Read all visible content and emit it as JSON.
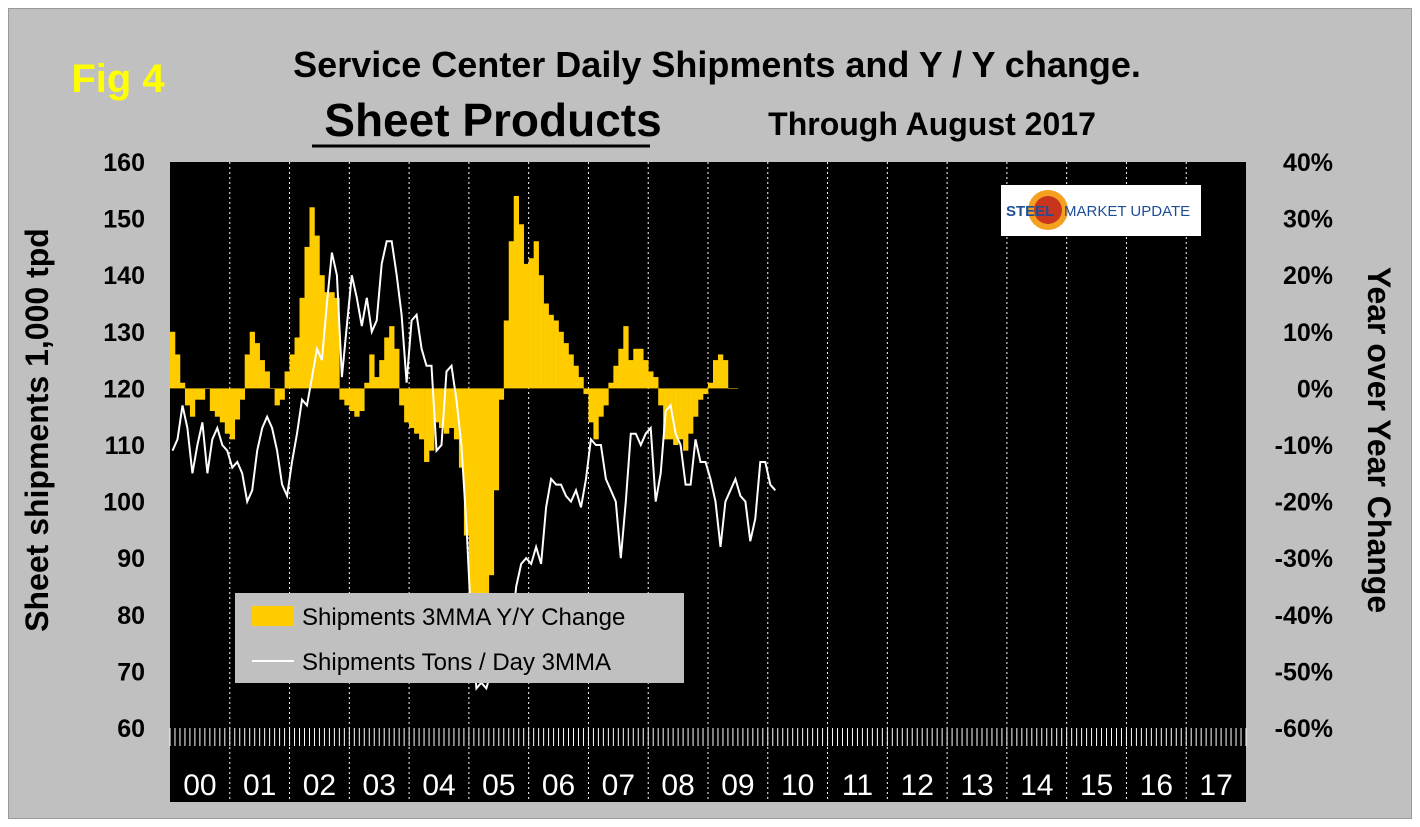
{
  "chart_data": {
    "type": "bar+line",
    "fig_label": "Fig 4",
    "title": "Service Center Daily Shipments and Y / Y change.",
    "subtitle": "Sheet Products",
    "subtitle2": "Through August 2017",
    "ylabel_left": "Sheet shipments 1,000 tpd",
    "ylabel_right": "Year over Year Change",
    "ylim_left": [
      60,
      160
    ],
    "ylim_right": [
      -60,
      40
    ],
    "yticks_left": [
      "60",
      "70",
      "80",
      "90",
      "100",
      "110",
      "120",
      "130",
      "140",
      "150",
      "160"
    ],
    "yticks_right": [
      "-60%",
      "-50%",
      "-40%",
      "-30%",
      "-20%",
      "-10%",
      "0%",
      "10%",
      "20%",
      "30%",
      "40%"
    ],
    "categories": [
      "00",
      "01",
      "02",
      "03",
      "04",
      "05",
      "06",
      "07",
      "08",
      "09",
      "10",
      "11",
      "12",
      "13",
      "14",
      "15",
      "16",
      "17"
    ],
    "logo_text": {
      "steel": "STEEL",
      "market_update": "MARKET UPDATE"
    },
    "legend": {
      "position": "bottom-left"
    },
    "colors": {
      "bars": "#ffcc00",
      "line": "#ffffff",
      "plot_bg": "#000000",
      "frame": "#c0c0c0",
      "fig_label": "#ffff00"
    },
    "series": [
      {
        "name": "Shipments 3MMA Y/Y Change",
        "type": "bar",
        "axis": "right",
        "anchors": [
          [
            0,
            10
          ],
          [
            1,
            6
          ],
          [
            2,
            1
          ],
          [
            3,
            -3
          ],
          [
            4,
            -5
          ],
          [
            5,
            -2
          ],
          [
            6,
            -2
          ],
          [
            7,
            0
          ],
          [
            8,
            -4
          ],
          [
            9,
            -5
          ],
          [
            10,
            -6
          ],
          [
            11,
            -8
          ],
          [
            12,
            -9
          ],
          [
            14,
            -2
          ],
          [
            15,
            6
          ],
          [
            16,
            10
          ],
          [
            17,
            8
          ],
          [
            18,
            5
          ],
          [
            19,
            3
          ],
          [
            20,
            0
          ],
          [
            21,
            -3
          ],
          [
            22,
            -2
          ],
          [
            23,
            3
          ],
          [
            24,
            6
          ],
          [
            25,
            9
          ],
          [
            26,
            16
          ],
          [
            27,
            25
          ],
          [
            28,
            32
          ],
          [
            29,
            27
          ],
          [
            30,
            20
          ],
          [
            31,
            17
          ],
          [
            32,
            17
          ],
          [
            33,
            16
          ],
          [
            34,
            -2
          ],
          [
            35,
            -3
          ],
          [
            36,
            -4
          ],
          [
            37,
            -5
          ],
          [
            38,
            -4
          ],
          [
            39,
            1
          ],
          [
            40,
            6
          ],
          [
            41,
            2
          ],
          [
            42,
            5
          ],
          [
            43,
            9
          ],
          [
            44,
            11
          ],
          [
            45,
            7
          ],
          [
            46,
            -3
          ],
          [
            47,
            -6
          ],
          [
            48,
            -7
          ],
          [
            49,
            -8
          ],
          [
            50,
            -9
          ],
          [
            51,
            -13
          ],
          [
            52,
            -11
          ],
          [
            53,
            -6
          ],
          [
            54,
            -7
          ],
          [
            55,
            -8
          ],
          [
            56,
            -7
          ],
          [
            57,
            -9
          ],
          [
            58,
            -14
          ],
          [
            59,
            -26
          ],
          [
            60,
            -37
          ],
          [
            61,
            -43
          ],
          [
            62,
            -46
          ],
          [
            63,
            -43
          ],
          [
            64,
            -33
          ],
          [
            65,
            -18
          ],
          [
            66,
            -2
          ],
          [
            67,
            12
          ],
          [
            68,
            26
          ],
          [
            69,
            34
          ],
          [
            70,
            29
          ],
          [
            71,
            22
          ],
          [
            72,
            23
          ],
          [
            73,
            26
          ],
          [
            74,
            20
          ],
          [
            75,
            15
          ],
          [
            76,
            13
          ],
          [
            77,
            12
          ],
          [
            78,
            10
          ],
          [
            79,
            8
          ],
          [
            80,
            6
          ],
          [
            81,
            4
          ],
          [
            82,
            2
          ],
          [
            83,
            -1
          ],
          [
            84,
            -6
          ],
          [
            85,
            -9
          ],
          [
            86,
            -5
          ],
          [
            87,
            -3
          ],
          [
            88,
            1
          ],
          [
            89,
            4
          ],
          [
            90,
            7
          ],
          [
            91,
            11
          ],
          [
            92,
            5
          ],
          [
            93,
            7
          ],
          [
            94,
            7
          ],
          [
            95,
            5
          ],
          [
            96,
            3
          ],
          [
            97,
            2
          ],
          [
            98,
            -3
          ],
          [
            99,
            -9
          ],
          [
            100,
            -9
          ],
          [
            101,
            -10
          ],
          [
            102,
            -9
          ],
          [
            103,
            -11
          ],
          [
            104,
            -8
          ],
          [
            105,
            -5
          ],
          [
            106,
            -2
          ],
          [
            107,
            -1
          ],
          [
            108,
            1
          ],
          [
            109,
            5
          ],
          [
            110,
            6
          ],
          [
            111,
            5
          ],
          [
            112,
            0
          ],
          [
            113,
            0
          ]
        ]
      },
      {
        "name": "Shipments Tons / Day 3MMA",
        "type": "line",
        "axis": "left",
        "anchors": [
          [
            0,
            109
          ],
          [
            1,
            111
          ],
          [
            2,
            117
          ],
          [
            3,
            113
          ],
          [
            4,
            105
          ],
          [
            5,
            110
          ],
          [
            6,
            114
          ],
          [
            7,
            105
          ],
          [
            8,
            111
          ],
          [
            9,
            113
          ],
          [
            10,
            110
          ],
          [
            11,
            109
          ],
          [
            12,
            106
          ],
          [
            13,
            107
          ],
          [
            14,
            105
          ],
          [
            15,
            100
          ],
          [
            16,
            102
          ],
          [
            17,
            109
          ],
          [
            18,
            113
          ],
          [
            19,
            115
          ],
          [
            20,
            113
          ],
          [
            21,
            109
          ],
          [
            22,
            103
          ],
          [
            23,
            101
          ],
          [
            24,
            107
          ],
          [
            25,
            112
          ],
          [
            26,
            118
          ],
          [
            27,
            117
          ],
          [
            28,
            122
          ],
          [
            29,
            127
          ],
          [
            30,
            125
          ],
          [
            31,
            135
          ],
          [
            32,
            144
          ],
          [
            33,
            140
          ],
          [
            34,
            122
          ],
          [
            35,
            131
          ],
          [
            36,
            140
          ],
          [
            37,
            136
          ],
          [
            38,
            131
          ],
          [
            39,
            136
          ],
          [
            40,
            130
          ],
          [
            41,
            132
          ],
          [
            42,
            142
          ],
          [
            43,
            146
          ],
          [
            44,
            146
          ],
          [
            45,
            140
          ],
          [
            46,
            133
          ],
          [
            47,
            121
          ],
          [
            48,
            132
          ],
          [
            49,
            133
          ],
          [
            50,
            127
          ],
          [
            51,
            124
          ],
          [
            52,
            124
          ],
          [
            53,
            109
          ],
          [
            54,
            110
          ],
          [
            55,
            123
          ],
          [
            56,
            124
          ],
          [
            57,
            118
          ],
          [
            58,
            110
          ],
          [
            59,
            96
          ],
          [
            60,
            78
          ],
          [
            61,
            67
          ],
          [
            62,
            68
          ],
          [
            63,
            67
          ],
          [
            64,
            70
          ],
          [
            65,
            74
          ],
          [
            66,
            76
          ],
          [
            67,
            72
          ],
          [
            68,
            76
          ],
          [
            69,
            85
          ],
          [
            70,
            89
          ],
          [
            71,
            90
          ],
          [
            72,
            89
          ],
          [
            73,
            92
          ],
          [
            74,
            89
          ],
          [
            75,
            99
          ],
          [
            76,
            104
          ],
          [
            77,
            103
          ],
          [
            78,
            103
          ],
          [
            79,
            101
          ],
          [
            80,
            100
          ],
          [
            81,
            102
          ],
          [
            82,
            99
          ],
          [
            83,
            104
          ],
          [
            84,
            111
          ],
          [
            85,
            110
          ],
          [
            86,
            110
          ],
          [
            87,
            104
          ],
          [
            88,
            102
          ],
          [
            89,
            100
          ],
          [
            90,
            90
          ],
          [
            91,
            100
          ],
          [
            92,
            112
          ],
          [
            93,
            112
          ],
          [
            94,
            110
          ],
          [
            95,
            112
          ],
          [
            96,
            113
          ],
          [
            97,
            100
          ],
          [
            98,
            105
          ],
          [
            99,
            116
          ],
          [
            100,
            117
          ],
          [
            101,
            112
          ],
          [
            102,
            110
          ],
          [
            103,
            103
          ],
          [
            104,
            103
          ],
          [
            105,
            111
          ],
          [
            106,
            107
          ],
          [
            107,
            107
          ],
          [
            108,
            104
          ],
          [
            109,
            100
          ],
          [
            110,
            92
          ],
          [
            111,
            100
          ],
          [
            112,
            102
          ],
          [
            113,
            104
          ],
          [
            114,
            101
          ],
          [
            115,
            100
          ],
          [
            116,
            93
          ],
          [
            117,
            97
          ],
          [
            118,
            107
          ],
          [
            119,
            107
          ],
          [
            120,
            103
          ],
          [
            121,
            102
          ]
        ]
      }
    ]
  }
}
